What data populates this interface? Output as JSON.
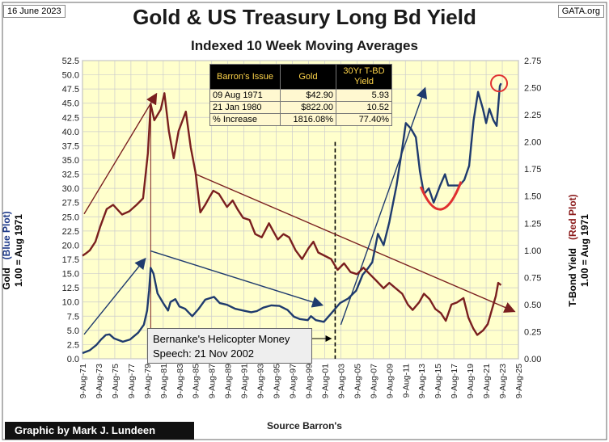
{
  "header": {
    "date": "16 June 2023",
    "source_site": "GATA.org"
  },
  "footer": {
    "credit": "Graphic by Mark J. Lundeen",
    "source": "Source Barron's"
  },
  "callout": {
    "line1": "Bernanke's Helicopter Money",
    "line2": "Speech: 21 Nov 2002"
  },
  "table": {
    "headers": [
      "Barron's Issue",
      "Gold",
      "30Yr T-BD Yield"
    ],
    "rows": [
      [
        "09 Aug 1971",
        "$42.90",
        "5.93"
      ],
      [
        "21 Jan 1980",
        "$822.00",
        "10.52"
      ],
      [
        "% Increase",
        "1816.08%",
        "77.40%"
      ]
    ]
  },
  "axis_labels": {
    "left_main": "Gold",
    "left_series": "(Blue Plot)",
    "left_sub": "1.00 = Aug 1971",
    "right_main": "T-Bond Yield",
    "right_series": "(Red Plot)",
    "right_sub": "1.00 = Aug 1971"
  },
  "colors": {
    "plot_bg": "#ffffcc",
    "gold_line": "#1f3b6e",
    "yield_line": "#7a1f1f",
    "grid": "#cccccc",
    "table_header_bg": "#000000",
    "table_header_text": "#ffd54a",
    "highlight_circle": "#e03030",
    "red_arc": "#e03030"
  },
  "chart_data": {
    "type": "line",
    "title": "Gold & US Treasury Long Bd Yield",
    "subtitle": "Indexed 10 Week Moving Averages",
    "xlabel": "Source Barron's",
    "x_ticks": [
      "9-Aug-71",
      "9-Aug-73",
      "9-Aug-75",
      "9-Aug-77",
      "9-Aug-79",
      "9-Aug-81",
      "9-Aug-83",
      "9-Aug-85",
      "9-Aug-87",
      "9-Aug-89",
      "9-Aug-91",
      "9-Aug-93",
      "9-Aug-95",
      "9-Aug-97",
      "9-Aug-99",
      "9-Aug-01",
      "9-Aug-03",
      "9-Aug-05",
      "9-Aug-07",
      "9-Aug-09",
      "9-Aug-11",
      "9-Aug-13",
      "9-Aug-15",
      "9-Aug-17",
      "9-Aug-19",
      "9-Aug-21",
      "9-Aug-23",
      "9-Aug-25"
    ],
    "xlim": [
      1971.6,
      2025.6
    ],
    "y_left": {
      "label": "Gold (Blue Plot) 1.00 = Aug 1971",
      "lim": [
        0,
        52.5
      ],
      "ticks": [
        "0.0",
        "2.5",
        "5.0",
        "7.5",
        "10.0",
        "12.5",
        "15.0",
        "17.5",
        "20.0",
        "22.5",
        "25.0",
        "27.5",
        "30.0",
        "32.5",
        "35.0",
        "37.5",
        "40.0",
        "42.5",
        "45.0",
        "47.5",
        "50.0",
        "52.5"
      ]
    },
    "y_right": {
      "label": "T-Bond Yield (Red Plot) 1.00 = Aug 1971",
      "lim": [
        0,
        2.75
      ],
      "ticks": [
        "0.00",
        "0.25",
        "0.50",
        "0.75",
        "1.00",
        "1.25",
        "1.50",
        "1.75",
        "2.00",
        "2.25",
        "2.50",
        "2.75"
      ]
    },
    "grid": true,
    "series": [
      {
        "axis": "left",
        "color": "#1f3b6e",
        "x": [
          1971.6,
          1972.5,
          1973.3,
          1973.9,
          1974.5,
          1974.95,
          1975.5,
          1976.6,
          1977.5,
          1978.5,
          1979.2,
          1979.6,
          1979.85,
          1980.05,
          1980.4,
          1980.9,
          1981.6,
          1982.2,
          1982.5,
          1983.1,
          1983.6,
          1984.3,
          1985.2,
          1986.0,
          1986.8,
          1987.9,
          1988.6,
          1989.5,
          1990.5,
          1991.5,
          1992.5,
          1993.2,
          1994.0,
          1995.0,
          1996.0,
          1997.0,
          1997.8,
          1998.5,
          1999.5,
          1999.9,
          2000.5,
          2001.5,
          2002.3,
          2002.9,
          2003.5,
          2004.5,
          2005.5,
          2006.3,
          2006.9,
          2007.5,
          2008.2,
          2008.9,
          2009.6,
          2010.5,
          2011.2,
          2011.65,
          2012.3,
          2012.9,
          2013.4,
          2013.9,
          2014.5,
          2015.1,
          2015.9,
          2016.5,
          2016.9,
          2017.5,
          2018.3,
          2018.9,
          2019.5,
          2020.05,
          2020.6,
          2021.2,
          2021.6,
          2022.0,
          2022.5,
          2022.9,
          2023.3,
          2023.45
        ],
        "y": [
          1.0,
          1.5,
          2.4,
          3.4,
          4.2,
          4.3,
          3.6,
          3.0,
          3.4,
          4.6,
          6.0,
          8.5,
          12.0,
          16.0,
          15.0,
          11.5,
          9.8,
          8.5,
          10.0,
          10.5,
          9.2,
          8.8,
          7.5,
          8.8,
          10.4,
          10.9,
          9.8,
          9.5,
          8.8,
          8.5,
          8.2,
          8.4,
          9.0,
          9.4,
          9.3,
          8.6,
          7.4,
          7.0,
          6.8,
          7.5,
          6.8,
          6.5,
          7.8,
          8.8,
          9.8,
          10.6,
          12.0,
          14.8,
          15.8,
          17.0,
          22.0,
          20.0,
          24.0,
          30.5,
          37.0,
          41.5,
          40.5,
          39.0,
          33.0,
          29.0,
          30.0,
          27.5,
          30.5,
          32.5,
          30.5,
          30.5,
          30.5,
          31.5,
          34.0,
          42.0,
          47.0,
          44.0,
          41.5,
          44.0,
          42.0,
          41.0,
          48.0,
          48.5
        ]
      },
      {
        "axis": "right",
        "color": "#7a1f1f",
        "x": [
          1971.6,
          1972.0,
          1972.5,
          1973.2,
          1973.8,
          1974.6,
          1975.4,
          1976.5,
          1977.4,
          1978.3,
          1979.1,
          1979.7,
          1980.05,
          1980.5,
          1981.3,
          1981.75,
          1982.3,
          1982.9,
          1983.5,
          1984.4,
          1985.0,
          1985.6,
          1986.2,
          1986.8,
          1987.4,
          1987.8,
          1988.5,
          1989.5,
          1990.2,
          1990.8,
          1991.5,
          1992.3,
          1993.0,
          1993.8,
          1994.7,
          1995.2,
          1995.8,
          1996.5,
          1997.2,
          1998.0,
          1998.8,
          1999.6,
          2000.2,
          2000.8,
          2001.6,
          2002.4,
          2003.2,
          2004.0,
          2004.8,
          2005.6,
          2006.4,
          2007.2,
          2008.0,
          2008.9,
          2009.6,
          2010.4,
          2011.2,
          2011.9,
          2012.5,
          2013.3,
          2013.9,
          2014.6,
          2015.3,
          2016.0,
          2016.6,
          2017.3,
          2018.0,
          2018.8,
          2019.4,
          2020.0,
          2020.5,
          2021.2,
          2021.8,
          2022.3,
          2022.8,
          2023.1,
          2023.45
        ],
        "y": [
          0.95,
          0.97,
          1.0,
          1.08,
          1.22,
          1.38,
          1.42,
          1.33,
          1.36,
          1.42,
          1.48,
          1.9,
          2.35,
          2.2,
          2.3,
          2.45,
          2.1,
          1.85,
          2.1,
          2.28,
          1.95,
          1.72,
          1.35,
          1.42,
          1.5,
          1.55,
          1.52,
          1.4,
          1.46,
          1.38,
          1.3,
          1.28,
          1.15,
          1.12,
          1.25,
          1.18,
          1.1,
          1.15,
          1.12,
          1.0,
          0.92,
          1.02,
          1.08,
          0.98,
          0.95,
          0.92,
          0.82,
          0.88,
          0.8,
          0.78,
          0.84,
          0.78,
          0.72,
          0.65,
          0.7,
          0.65,
          0.6,
          0.5,
          0.45,
          0.52,
          0.6,
          0.55,
          0.46,
          0.42,
          0.35,
          0.5,
          0.52,
          0.56,
          0.38,
          0.28,
          0.22,
          0.26,
          0.32,
          0.45,
          0.58,
          0.7,
          0.68
        ]
      }
    ],
    "annotations": [
      {
        "type": "vline",
        "x": 1980.05,
        "style": "solid",
        "color": "#7a1f1f"
      },
      {
        "type": "vline",
        "x": 2002.9,
        "style": "dashed",
        "color": "#000000"
      },
      {
        "type": "highlight-circle",
        "x": 2023.2,
        "y_left": 48.5
      },
      {
        "type": "arc",
        "from": [
          2013.5,
          30.3
        ],
        "to": [
          2018.5,
          31.2
        ],
        "min": [
          2016.0,
          25.0
        ]
      }
    ]
  }
}
